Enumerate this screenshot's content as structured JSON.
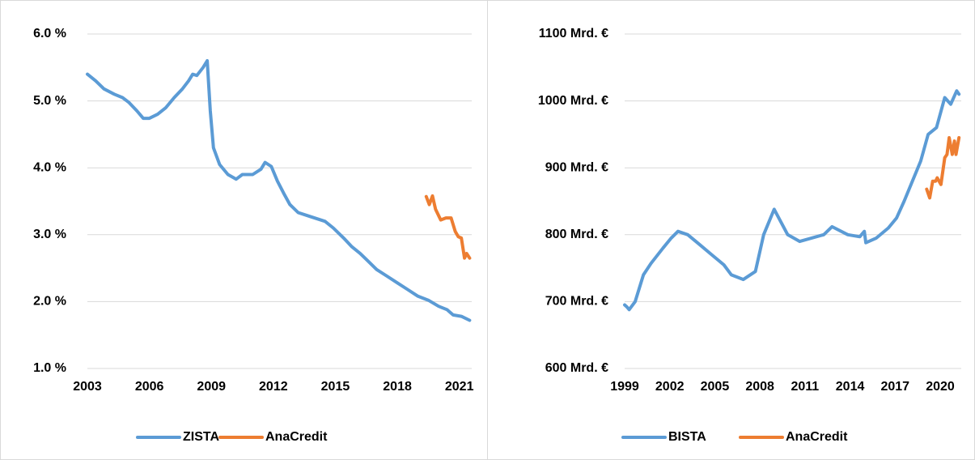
{
  "chart_data": [
    {
      "type": "line",
      "xlim": [
        2003,
        2021.6
      ],
      "xticks": [
        2003,
        2006,
        2009,
        2012,
        2015,
        2018,
        2021
      ],
      "ylim": [
        1,
        6
      ],
      "yticks": [
        {
          "value": 1,
          "label": "1.0 %"
        },
        {
          "value": 2,
          "label": "2.0 %"
        },
        {
          "value": 3,
          "label": "3.0 %"
        },
        {
          "value": 4,
          "label": "4.0 %"
        },
        {
          "value": 5,
          "label": "5.0 %"
        },
        {
          "value": 6,
          "label": "6.0 %"
        }
      ],
      "grid": true,
      "legend": "bottom",
      "series": [
        {
          "name": "ZISTA",
          "color": "#5b9bd5",
          "x": [
            2003.0,
            2003.4,
            2003.8,
            2004.3,
            2004.7,
            2005.0,
            2005.4,
            2005.7,
            2006.0,
            2006.4,
            2006.8,
            2007.2,
            2007.6,
            2007.9,
            2008.1,
            2008.3,
            2008.6,
            2008.8,
            2008.95,
            2009.1,
            2009.4,
            2009.8,
            2010.2,
            2010.5,
            2011.0,
            2011.4,
            2011.6,
            2011.9,
            2012.2,
            2012.5,
            2012.8,
            2013.2,
            2013.7,
            2014.2,
            2014.5,
            2014.9,
            2015.4,
            2015.8,
            2016.2,
            2016.6,
            2017.0,
            2017.5,
            2018.0,
            2018.5,
            2019.0,
            2019.5,
            2020.0,
            2020.4,
            2020.7,
            2021.1,
            2021.5
          ],
          "values": [
            5.4,
            5.3,
            5.18,
            5.1,
            5.05,
            4.98,
            4.85,
            4.74,
            4.74,
            4.8,
            4.9,
            5.05,
            5.18,
            5.3,
            5.4,
            5.38,
            5.5,
            5.6,
            4.85,
            4.3,
            4.05,
            3.9,
            3.83,
            3.9,
            3.9,
            3.98,
            4.08,
            4.02,
            3.8,
            3.62,
            3.45,
            3.33,
            3.28,
            3.23,
            3.2,
            3.1,
            2.95,
            2.82,
            2.72,
            2.6,
            2.48,
            2.38,
            2.28,
            2.18,
            2.08,
            2.02,
            1.93,
            1.88,
            1.8,
            1.78,
            1.72
          ]
        },
        {
          "name": "AnaCredit",
          "color": "#ed7d31",
          "x": [
            2019.4,
            2019.55,
            2019.7,
            2019.85,
            2020.1,
            2020.35,
            2020.6,
            2020.8,
            2020.95,
            2021.1,
            2021.25,
            2021.35,
            2021.5
          ],
          "values": [
            3.57,
            3.45,
            3.58,
            3.38,
            3.22,
            3.25,
            3.25,
            3.05,
            2.97,
            2.95,
            2.65,
            2.72,
            2.65
          ]
        }
      ]
    },
    {
      "type": "line",
      "xlim": [
        1999,
        2021.4
      ],
      "xticks": [
        1999,
        2002,
        2005,
        2008,
        2011,
        2014,
        2017,
        2020
      ],
      "ylim": [
        600,
        1100
      ],
      "yticks": [
        {
          "value": 600,
          "label": "600 Mrd. €"
        },
        {
          "value": 700,
          "label": "700 Mrd. €"
        },
        {
          "value": 800,
          "label": "800 Mrd. €"
        },
        {
          "value": 900,
          "label": "900 Mrd. €"
        },
        {
          "value": 1000,
          "label": "1000 Mrd. €"
        },
        {
          "value": 1100,
          "label": "1100 Mrd. €"
        }
      ],
      "grid": true,
      "legend": "bottom",
      "series": [
        {
          "name": "BISTA",
          "color": "#5b9bd5",
          "x": [
            1999.0,
            1999.15,
            1999.3,
            1999.7,
            2000.25,
            2000.75,
            2001.55,
            2002.1,
            2002.55,
            2003.2,
            2004.0,
            2004.8,
            2005.6,
            2006.1,
            2006.9,
            2007.7,
            2008.25,
            2008.95,
            2009.85,
            2010.65,
            2012.25,
            2012.8,
            2013.85,
            2014.65,
            2014.95,
            2015.05,
            2015.75,
            2016.55,
            2017.1,
            2017.6,
            2018.15,
            2018.7,
            2019.2,
            2019.75,
            2020.3,
            2020.7,
            2021.1,
            2021.25
          ],
          "values": [
            695,
            692,
            688,
            700,
            740,
            757,
            780,
            795,
            805,
            800,
            785,
            770,
            755,
            740,
            733,
            745,
            800,
            838,
            800,
            790,
            800,
            812,
            800,
            797,
            805,
            788,
            795,
            810,
            825,
            850,
            880,
            910,
            950,
            960,
            1005,
            995,
            1015,
            1010
          ]
        },
        {
          "name": "AnaCredit",
          "color": "#ed7d31",
          "x": [
            2019.1,
            2019.3,
            2019.5,
            2019.7,
            2019.8,
            2020.05,
            2020.3,
            2020.45,
            2020.6,
            2020.8,
            2020.95,
            2021.05,
            2021.25
          ],
          "values": [
            868,
            855,
            880,
            880,
            885,
            875,
            915,
            920,
            945,
            920,
            940,
            920,
            945
          ]
        }
      ]
    }
  ]
}
